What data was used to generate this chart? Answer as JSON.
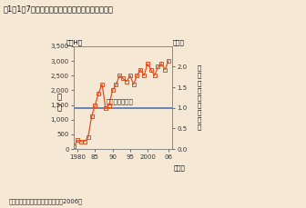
{
  "title": "図1－1－7　南極上空のオゾンホールの面積の推移",
  "source": "出典：気象庁『オゾン層観測報告2006』",
  "ylabel_left": "面\n積",
  "ylabel_left_top": "（万H）",
  "ylabel_right_top": "（倍）",
  "ylabel_right_side": "南\n極\n大\n陸\nと\nの\n面\n積\n比",
  "xlabel": "（年）",
  "annotation": "南極大陸の面積",
  "background_color": "#f5e8d5",
  "line_color": "#e05020",
  "marker_color": "#e05020",
  "hline_color": "#4169aa",
  "hline_value": 1390,
  "xlim": [
    1979,
    2007
  ],
  "ylim_left": [
    0,
    3500
  ],
  "ylim_right": [
    0,
    2.5
  ],
  "yticks_left": [
    0,
    500,
    1000,
    1500,
    2000,
    2500,
    3000,
    3500
  ],
  "ytick_labels_left": [
    "0",
    "500",
    "1,000",
    "1,500",
    "2,000",
    "2,500",
    "3,000",
    "3,500"
  ],
  "yticks_right": [
    0.0,
    0.5,
    1.0,
    1.5,
    2.0
  ],
  "ytick_labels_right": [
    "0.0",
    "0.5",
    "1.0",
    "1.5",
    "2.0"
  ],
  "xticks": [
    1980,
    1985,
    1990,
    1995,
    2000,
    2006
  ],
  "xtick_labels": [
    "1980",
    "85",
    "90",
    "95",
    "2000",
    "06"
  ],
  "years": [
    1979,
    1980,
    1981,
    1982,
    1983,
    1984,
    1985,
    1986,
    1987,
    1988,
    1989,
    1990,
    1991,
    1992,
    1993,
    1994,
    1995,
    1996,
    1997,
    1998,
    1999,
    2000,
    2001,
    2002,
    2003,
    2004,
    2005,
    2006
  ],
  "values": [
    100,
    300,
    250,
    250,
    400,
    1100,
    1500,
    1900,
    2200,
    1400,
    1500,
    2000,
    2200,
    2500,
    2400,
    2300,
    2500,
    2200,
    2500,
    2700,
    2500,
    2900,
    2700,
    2500,
    2800,
    2900,
    2700,
    3000
  ]
}
